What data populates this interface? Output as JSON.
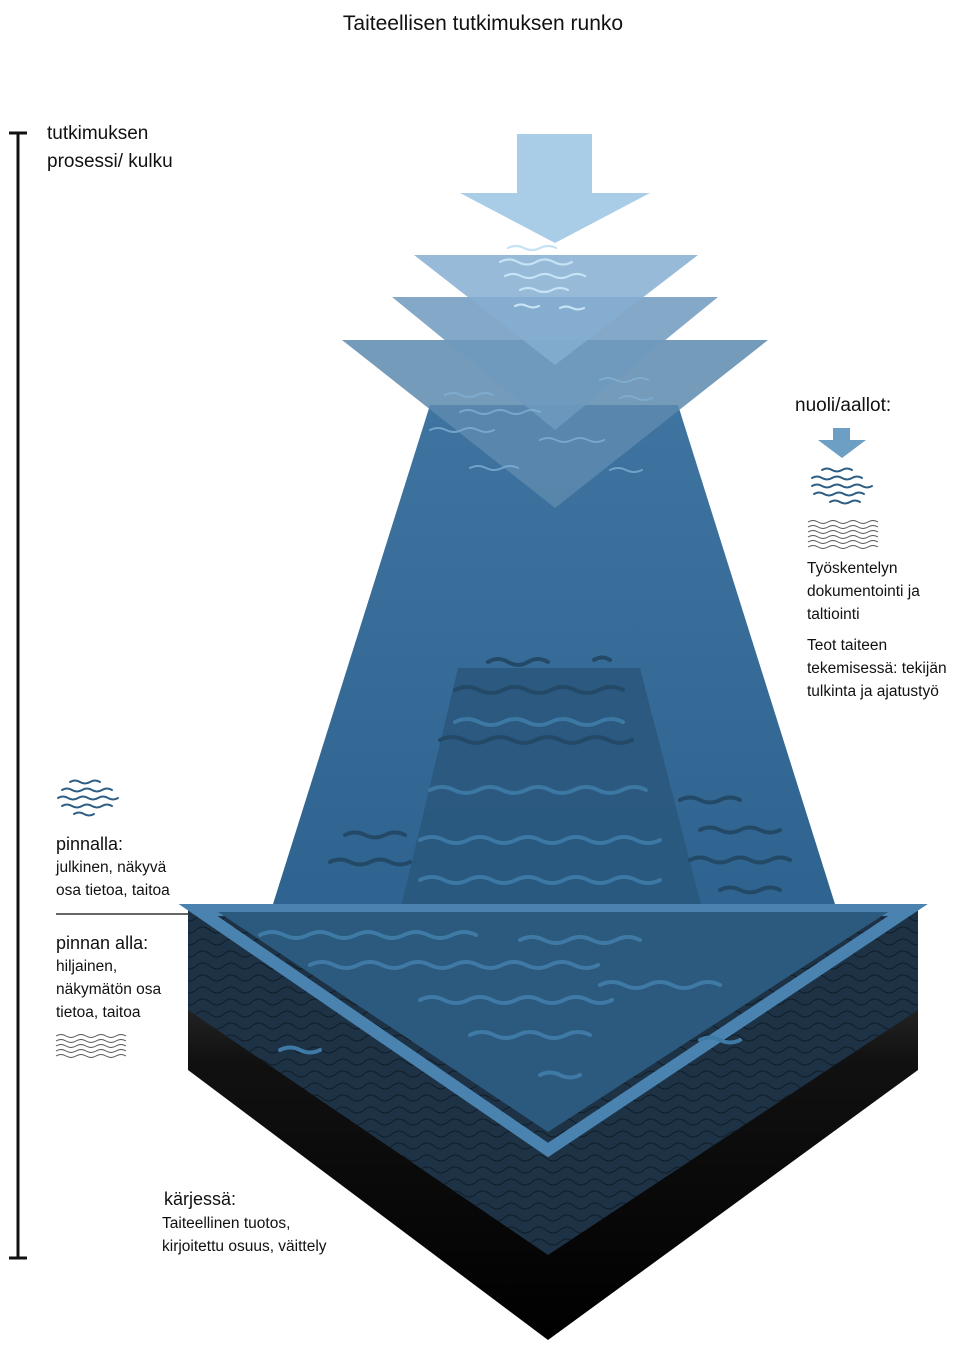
{
  "title": "Taiteellisen tutkimuksen  runko",
  "process_axis": {
    "label_lines": [
      "tutkimuksen",
      "prosessi/ kulku"
    ]
  },
  "legend": {
    "heading": "nuoli/aallot:",
    "items": [
      {
        "icon": "arrow-down-icon",
        "color": "#6d9ec4"
      },
      {
        "icon": "waves-blue-icon",
        "color": "#2f5f85"
      },
      {
        "icon": "waves-outline-icon",
        "color": "#555555"
      }
    ],
    "descriptions": [
      [
        "Työskentelyn",
        "dokumentointi ja",
        "taltiointi"
      ],
      [
        "Teot taiteen",
        "tekemisessä: tekijän",
        "tulkinta ja ajatustyö"
      ]
    ]
  },
  "surface": {
    "heading": "pinnalla:",
    "lines": [
      "julkinen, näkyvä",
      "osa tietoa, taitoa"
    ]
  },
  "below_surface": {
    "heading": "pinnan alla:",
    "lines": [
      "hiljainen,",
      "näkymätön osa",
      "tietoa, taitoa"
    ]
  },
  "tip": {
    "heading": "kärjessä:",
    "lines": [
      "Taiteellinen tuotos,",
      "kirjoitettu osuus, väittely"
    ]
  },
  "colors": {
    "arrow_light": "#a9cde6",
    "arrow_mid": "#7eaacb",
    "arrow_dark": "#4f82ab",
    "cone": "#3a6d99",
    "water_dark": "#264f70",
    "water_edge": "#4079a6",
    "black_base": "#111111"
  }
}
